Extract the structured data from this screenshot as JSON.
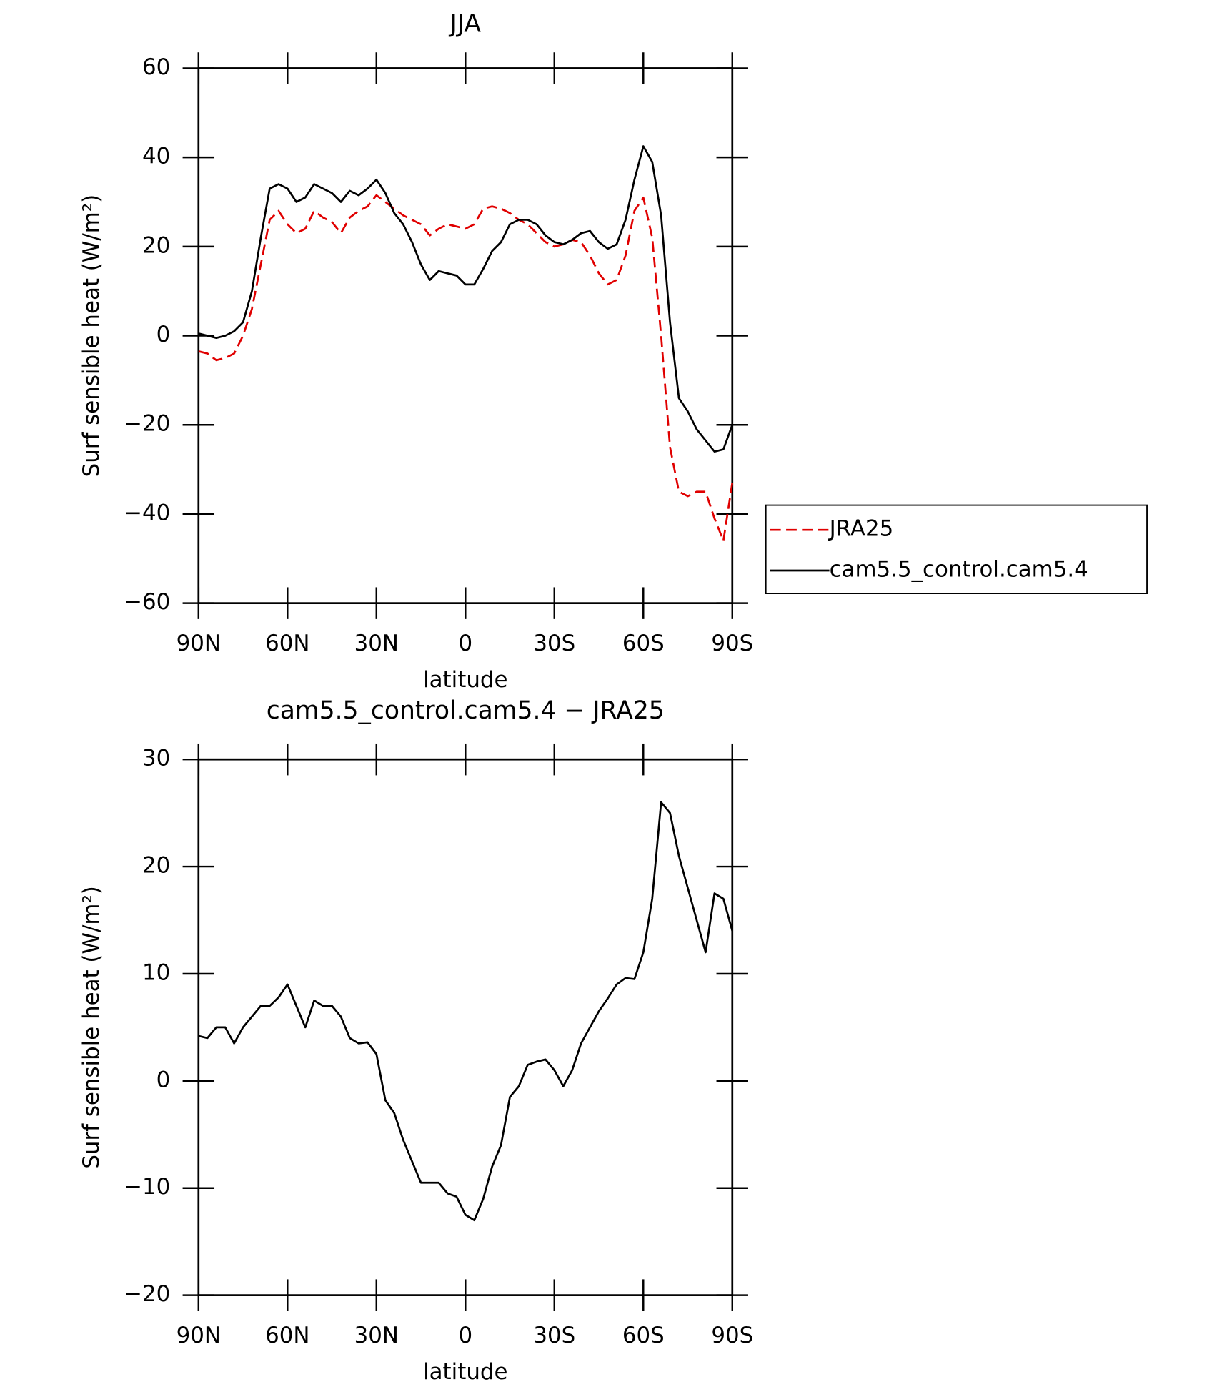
{
  "chart_data": [
    {
      "type": "line",
      "title": "JJA",
      "xlabel": "latitude",
      "ylabel": "Surf sensible heat (W/m²)",
      "x": [
        90,
        87,
        84,
        81,
        78,
        75,
        72,
        69,
        66,
        63,
        60,
        57,
        54,
        51,
        48,
        45,
        42,
        39,
        36,
        33,
        30,
        27,
        24,
        21,
        18,
        15,
        12,
        9,
        6,
        3,
        0,
        -3,
        -6,
        -9,
        -12,
        -15,
        -18,
        -21,
        -24,
        -27,
        -30,
        -33,
        -36,
        -39,
        -42,
        -45,
        -48,
        -51,
        -54,
        -57,
        -60,
        -63,
        -66,
        -69,
        -72,
        -75,
        -78,
        -81,
        -84,
        -87,
        -90
      ],
      "series": [
        {
          "name": "JRA25",
          "color": "#e00000",
          "dash": true,
          "values": [
            -3.5,
            -4,
            -5.5,
            -5,
            -4,
            0,
            6,
            16,
            26,
            28,
            25,
            23,
            24,
            28,
            26.5,
            25.5,
            23,
            26.5,
            28,
            29,
            31.5,
            30,
            28.5,
            27,
            26,
            25,
            22.5,
            24,
            25,
            24.5,
            24,
            25,
            28.5,
            29,
            28.5,
            27.5,
            26,
            25,
            23,
            21,
            20,
            20.5,
            21.5,
            21,
            18,
            14,
            11.5,
            12.5,
            18,
            28,
            31,
            22,
            0,
            -25,
            -35,
            -36,
            -35,
            -35,
            -41,
            -46,
            -33
          ]
        },
        {
          "name": "cam5.5_control.cam5.4",
          "color": "#000000",
          "dash": false,
          "values": [
            0.5,
            0,
            -0.5,
            0,
            1,
            3,
            10,
            22,
            33,
            34,
            33,
            30,
            31,
            34,
            33,
            32,
            30,
            32.5,
            31.5,
            33,
            35,
            32,
            27.5,
            25,
            21,
            16,
            12.5,
            14.5,
            14,
            13.5,
            11.5,
            11.5,
            15,
            19,
            21,
            25,
            26,
            26,
            25,
            22.5,
            21,
            20.5,
            21.5,
            23,
            23.5,
            21,
            19.5,
            20.5,
            26,
            35,
            42.5,
            39,
            27,
            3,
            -14,
            -17,
            -21,
            -23.5,
            -26,
            -25.5,
            -20
          ]
        }
      ],
      "xlim": [
        90,
        -90
      ],
      "xticks": [
        {
          "value": 90,
          "label": "90N"
        },
        {
          "value": 60,
          "label": "60N"
        },
        {
          "value": 30,
          "label": "30N"
        },
        0,
        {
          "value": -30,
          "label": "30S"
        },
        {
          "value": -60,
          "label": "60S"
        },
        {
          "value": -90,
          "label": "90S"
        }
      ],
      "ylim": [
        -60,
        60
      ],
      "yticks": [
        {
          "value": -60,
          "label": "−60"
        },
        {
          "value": -40,
          "label": "−40"
        },
        {
          "value": -20,
          "label": "−20"
        },
        0,
        20,
        40,
        60
      ],
      "legend": "right"
    },
    {
      "type": "line",
      "title": "cam5.5_control.cam5.4 − JRA25",
      "xlabel": "latitude",
      "ylabel": "Surf sensible heat (W/m²)",
      "x": [
        90,
        87,
        84,
        81,
        78,
        75,
        72,
        69,
        66,
        63,
        60,
        57,
        54,
        51,
        48,
        45,
        42,
        39,
        36,
        33,
        30,
        27,
        24,
        21,
        18,
        15,
        12,
        9,
        6,
        3,
        0,
        -3,
        -6,
        -9,
        -12,
        -15,
        -18,
        -21,
        -24,
        -27,
        -30,
        -33,
        -36,
        -39,
        -42,
        -45,
        -48,
        -51,
        -54,
        -57,
        -60,
        -63,
        -66,
        -69,
        -72,
        -75,
        -78,
        -81,
        -84,
        -87,
        -90
      ],
      "color": "#000000",
      "values": [
        4.2,
        4,
        5,
        5,
        3.5,
        5,
        6,
        7,
        7,
        7.8,
        9,
        7,
        5,
        7.5,
        7,
        7,
        6,
        4,
        3.5,
        3.6,
        2.5,
        -1.8,
        -3,
        -5.5,
        -7.5,
        -9.5,
        -9.5,
        -9.5,
        -10.5,
        -10.8,
        -12.5,
        -13,
        -11,
        -8,
        -6,
        -1.5,
        -0.5,
        1.5,
        1.8,
        2,
        1,
        -0.5,
        1,
        3.5,
        5,
        6.5,
        7.7,
        9,
        9.6,
        9.5,
        12,
        17,
        26,
        25,
        21,
        18,
        15,
        12,
        17.5,
        17,
        14
      ],
      "xlim": [
        90,
        -90
      ],
      "xticks": [
        {
          "value": 90,
          "label": "90N"
        },
        {
          "value": 60,
          "label": "60N"
        },
        {
          "value": 30,
          "label": "30N"
        },
        0,
        {
          "value": -30,
          "label": "30S"
        },
        {
          "value": -60,
          "label": "60S"
        },
        {
          "value": -90,
          "label": "90S"
        }
      ],
      "ylim": [
        -20,
        30
      ],
      "yticks": [
        {
          "value": -20,
          "label": "−20"
        },
        {
          "value": -10,
          "label": "−10"
        },
        0,
        10,
        20,
        30
      ]
    }
  ]
}
